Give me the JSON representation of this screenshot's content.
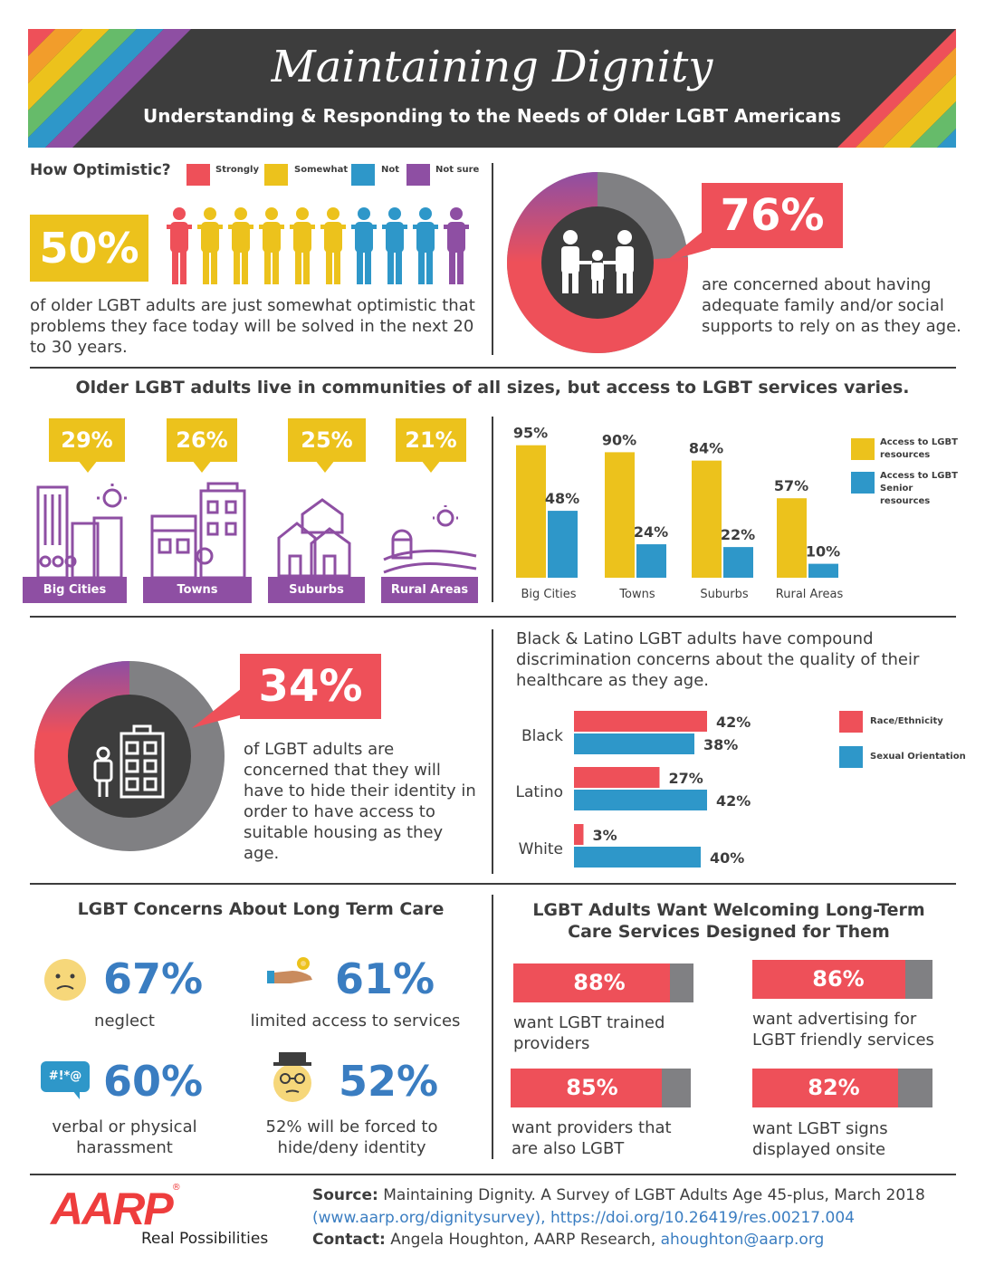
{
  "header": {
    "title": "Maintaining Dignity",
    "subtitle": "Understanding & Responding to the Needs of Older LGBT Americans"
  },
  "colors": {
    "red": "#ee5059",
    "yellow": "#ecc21c",
    "blue": "#2e97c9",
    "purple": "#8e4fa3",
    "dark": "#3d3d3d",
    "gray": "#808083",
    "pct_blue": "#3a7dc1"
  },
  "optimism": {
    "heading": "How Optimistic?",
    "legend": [
      "Strongly",
      "Somewhat",
      "Not",
      "Not sure"
    ],
    "percent": "50%",
    "people_colors": [
      "red",
      "yellow",
      "yellow",
      "yellow",
      "yellow",
      "yellow",
      "blue",
      "blue",
      "blue",
      "purple"
    ],
    "text": "of older LGBT adults are just somewhat optimistic that problems they face today will be solved in the next 20 to 30 years."
  },
  "family": {
    "percent": "76%",
    "share": 0.76,
    "text": "are concerned about having adequate family and/or social supports to rely on as they age."
  },
  "communities": {
    "heading": "Older LGBT adults live in communities of all sizes, but access to LGBT services varies.",
    "places": [
      {
        "percent": "29%",
        "label": "Big Cities"
      },
      {
        "percent": "26%",
        "label": "Towns"
      },
      {
        "percent": "25%",
        "label": "Suburbs"
      },
      {
        "percent": "21%",
        "label": "Rural Areas"
      }
    ]
  },
  "housing": {
    "percent": "34%",
    "share": 0.34,
    "text": "of LGBT adults are concerned that they will have to hide their identity in order to have access to suitable housing as they age."
  },
  "chart_data": [
    {
      "type": "bar",
      "categories": [
        "Big Cities",
        "Towns",
        "Suburbs",
        "Rural Areas"
      ],
      "series": [
        {
          "name": "Access to LGBT resources",
          "values": [
            95,
            90,
            84,
            57
          ],
          "color": "#ecc21c"
        },
        {
          "name": "Access to LGBT Senior resources",
          "values": [
            48,
            24,
            22,
            10
          ],
          "color": "#2e97c9"
        }
      ],
      "ylim": [
        0,
        100
      ]
    },
    {
      "type": "bar",
      "orientation": "horizontal",
      "title": "Black & Latino LGBT adults have compound discrimination concerns about the quality of their healthcare as they age.",
      "categories": [
        "Black",
        "Latino",
        "White"
      ],
      "series": [
        {
          "name": "Race/Ethnicity",
          "values": [
            42,
            27,
            3
          ],
          "color": "#ee5059"
        },
        {
          "name": "Sexual Orientation",
          "values": [
            38,
            42,
            40
          ],
          "color": "#2e97c9"
        }
      ],
      "xlim": [
        0,
        50
      ]
    }
  ],
  "care": {
    "heading": "LGBT Concerns About Long Term Care",
    "items": [
      {
        "percent": "67%",
        "label": "neglect",
        "icon": "sad-face-icon"
      },
      {
        "percent": "61%",
        "label": "limited access to services",
        "icon": "hand-coin-icon"
      },
      {
        "percent": "60%",
        "label": "verbal or physical harassment",
        "icon": "speech-bubble-icon",
        "bubble": "#!*@"
      },
      {
        "percent": "52%",
        "label": "52% will be forced to hide/deny identity",
        "icon": "disguise-face-icon"
      }
    ]
  },
  "welcoming": {
    "heading": "LGBT Adults Want Welcoming Long-Term Care Services Designed for Them",
    "items": [
      {
        "percent": "88%",
        "value": 88,
        "label": "want LGBT trained providers"
      },
      {
        "percent": "86%",
        "value": 86,
        "label": "want advertising for LGBT friendly services"
      },
      {
        "percent": "85%",
        "value": 85,
        "label": "want providers that are also LGBT"
      },
      {
        "percent": "82%",
        "value": 82,
        "label": "want LGBT signs displayed onsite"
      }
    ]
  },
  "footer": {
    "logo": "AARP",
    "logo_mark": "®",
    "tagline": "Real Possibilities",
    "source_label": "Source:",
    "source_text": "Maintaining Dignity. A Survey of LGBT Adults Age 45-plus, March 2018",
    "link1": "(www.aarp.org/dignitysurvey),",
    "link2": "https://doi.org/10.26419/res.00217.004",
    "contact_label": "Contact:",
    "contact_text": "Angela Houghton, AARP Research,",
    "contact_email": "ahoughton@aarp.org"
  }
}
